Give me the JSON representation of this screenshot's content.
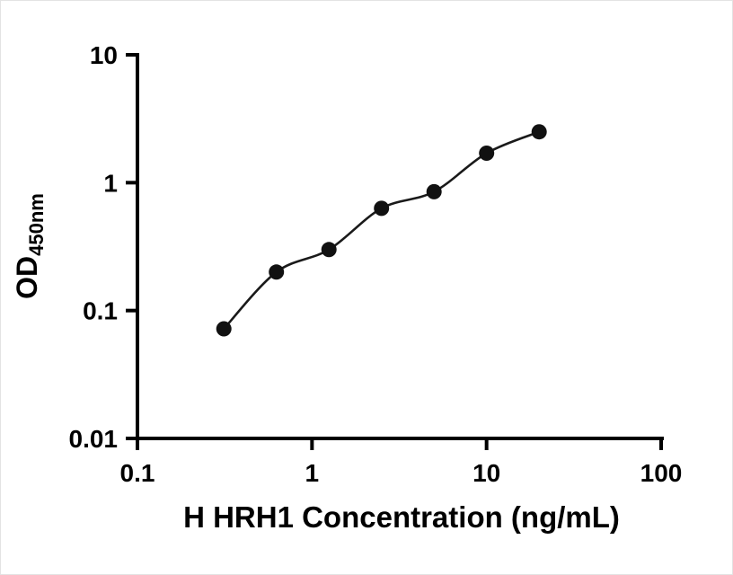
{
  "figure": {
    "background": "#ffffff"
  },
  "chart_data": {
    "type": "scatter",
    "title": "",
    "xlabel": "H HRH1 Concentration (ng/mL)",
    "ylabel": "OD450nm",
    "ylabel_main": "OD",
    "ylabel_sub": "450nm",
    "x_scale": "log",
    "y_scale": "log",
    "xlim": [
      0.1,
      100
    ],
    "ylim": [
      0.01,
      10
    ],
    "grid": false,
    "legend": "none",
    "curve": "smooth fit line through points",
    "x_ticks": [
      {
        "value": 0.1,
        "label": "0.1"
      },
      {
        "value": 1,
        "label": "1"
      },
      {
        "value": 10,
        "label": "10"
      },
      {
        "value": 100,
        "label": "100"
      }
    ],
    "y_ticks": [
      {
        "value": 0.01,
        "label": "0.01"
      },
      {
        "value": 0.1,
        "label": "0.1"
      },
      {
        "value": 1,
        "label": "1"
      },
      {
        "value": 10,
        "label": "10"
      }
    ],
    "points": [
      {
        "x": 0.3125,
        "y": 0.072
      },
      {
        "x": 0.625,
        "y": 0.2
      },
      {
        "x": 1.25,
        "y": 0.3
      },
      {
        "x": 2.5,
        "y": 0.63
      },
      {
        "x": 5,
        "y": 0.85
      },
      {
        "x": 10,
        "y": 1.7
      },
      {
        "x": 20,
        "y": 2.5
      }
    ],
    "colors": {
      "point": "#111111",
      "line": "#1a1a1a",
      "axis": "#000000",
      "text": "#000000"
    }
  }
}
